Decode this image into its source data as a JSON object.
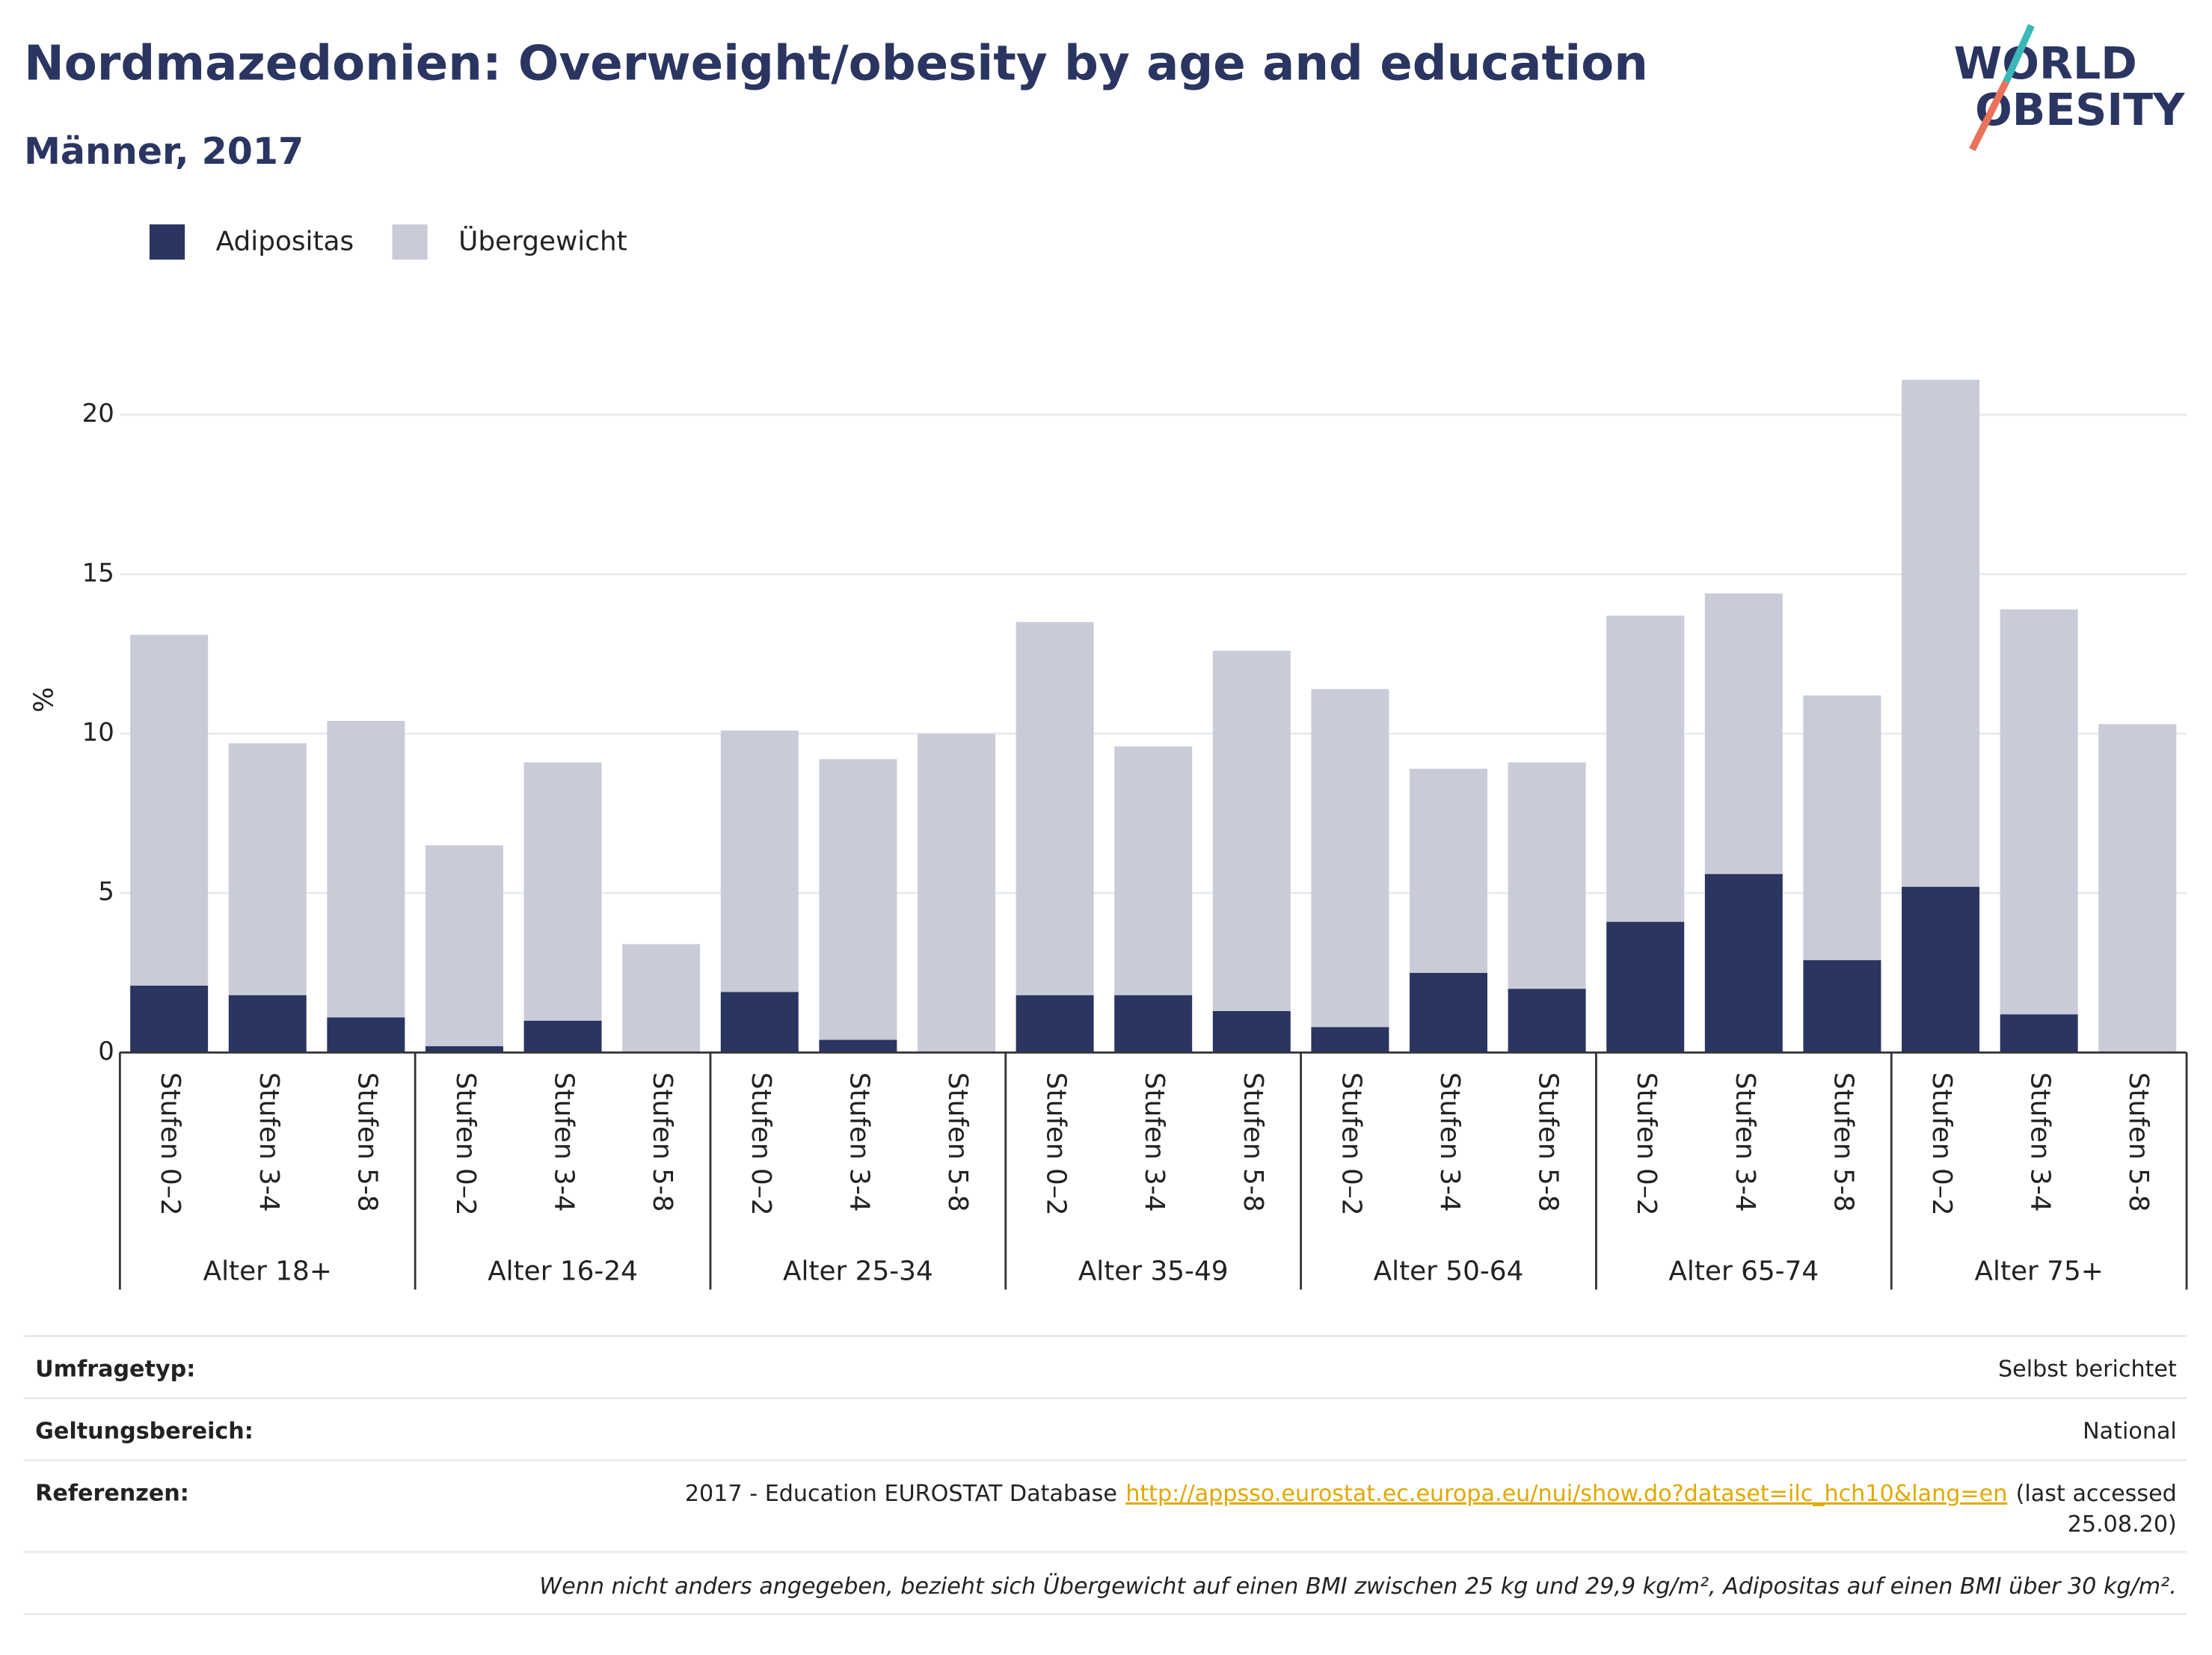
{
  "chart_data": {
    "type": "stacked_bar",
    "title": "Nordmazedonien: Overweight/obesity by age and education",
    "subtitle": "Männer, 2017",
    "logo": [
      "WORLD",
      "OBESITY"
    ],
    "ylabel": "%",
    "groups": [
      "Alter 18+",
      "Alter 16-24",
      "Alter 25-34",
      "Alter 35-49",
      "Alter 50-64",
      "Alter 65-74",
      "Alter 75+"
    ],
    "categories": [
      "Stufen 0–2",
      "Stufen 3-4",
      "Stufen 5-8",
      "Stufen 0–2",
      "Stufen 3-4",
      "Stufen 5-8",
      "Stufen 0–2",
      "Stufen 3-4",
      "Stufen 5-8",
      "Stufen 0–2",
      "Stufen 3-4",
      "Stufen 5-8",
      "Stufen 0–2",
      "Stufen 3-4",
      "Stufen 5-8",
      "Stufen 0–2",
      "Stufen 3-4",
      "Stufen 5-8",
      "Stufen 0–2",
      "Stufen 3-4",
      "Stufen 5-8"
    ],
    "series": [
      {
        "name": "Adipositas",
        "color": "#2a3561",
        "values": [
          2.1,
          1.8,
          1.1,
          0.2,
          1.0,
          0,
          1.9,
          0.4,
          0,
          1.8,
          1.8,
          1.3,
          0.8,
          2.5,
          2.0,
          4.1,
          5.6,
          2.9,
          5.2,
          1.2,
          0
        ]
      },
      {
        "name": "Übergewicht",
        "color": "#c9cbd8",
        "values": [
          11.0,
          7.9,
          9.3,
          6.3,
          8.1,
          3.4,
          8.2,
          8.8,
          10.0,
          11.7,
          7.8,
          11.3,
          10.6,
          6.4,
          7.1,
          9.6,
          8.8,
          8.3,
          15.9,
          12.7,
          10.3
        ]
      }
    ],
    "ylim": [
      0,
      22.5
    ],
    "yticks": [
      0,
      5,
      10,
      15,
      20
    ],
    "grid": true,
    "legend": "top-left",
    "info": [
      {
        "label": "Umfragetyp:",
        "value": "Selbst berichtet"
      },
      {
        "label": "Geltungsbereich:",
        "value": "National"
      }
    ],
    "reference": {
      "label": "Referenzen:",
      "prefix": "2017 - Education EUROSTAT Database",
      "url": "http://appsso.eurostat.ec.europa.eu/nui/show.do?dataset=ilc_hch10&lang=en",
      "suffix": [
        "(last accessed",
        "25.08.20)"
      ]
    },
    "footnote": "Wenn nicht anders angegeben, bezieht sich Übergewicht auf einen BMI zwischen 25 kg und 29,9 kg/m², Adipositas auf einen BMI über 30 kg/m²."
  }
}
